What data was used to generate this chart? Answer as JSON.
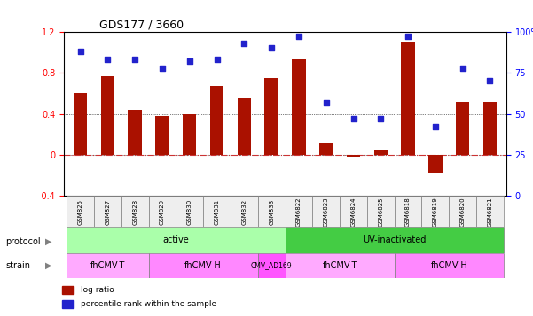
{
  "title": "GDS177 / 3660",
  "samples": [
    "GSM825",
    "GSM827",
    "GSM828",
    "GSM829",
    "GSM830",
    "GSM831",
    "GSM832",
    "GSM833",
    "GSM6822",
    "GSM6823",
    "GSM6824",
    "GSM6825",
    "GSM6818",
    "GSM6819",
    "GSM6820",
    "GSM6821"
  ],
  "log_ratio": [
    0.6,
    0.77,
    0.44,
    0.38,
    0.4,
    0.67,
    0.55,
    0.75,
    0.93,
    0.12,
    -0.02,
    0.04,
    1.1,
    -0.18,
    0.52,
    0.52
  ],
  "percentile": [
    88,
    83,
    83,
    78,
    82,
    83,
    93,
    90,
    97,
    57,
    47,
    47,
    97,
    42,
    78,
    70
  ],
  "ylim_left": [
    -0.4,
    1.2
  ],
  "ylim_right": [
    0,
    100
  ],
  "yticks_left": [
    -0.4,
    0,
    0.4,
    0.8,
    1.2
  ],
  "yticks_right": [
    0,
    25,
    50,
    75,
    100
  ],
  "hlines": [
    0.0,
    0.4,
    0.8
  ],
  "bar_color": "#AA1100",
  "dot_color": "#2222CC",
  "zero_line_color": "#CC3333",
  "protocol_groups": [
    {
      "label": "active",
      "start": 0,
      "end": 8,
      "color": "#AAFFAA"
    },
    {
      "label": "UV-inactivated",
      "start": 8,
      "end": 16,
      "color": "#44CC44"
    }
  ],
  "strain_groups": [
    {
      "label": "fhCMV-T",
      "start": 0,
      "end": 3,
      "color": "#FFAAFF"
    },
    {
      "label": "fhCMV-H",
      "start": 3,
      "end": 7,
      "color": "#FF88FF"
    },
    {
      "label": "CMV_AD169",
      "start": 7,
      "end": 8,
      "color": "#FF55FF"
    },
    {
      "label": "fhCMV-T",
      "start": 8,
      "end": 12,
      "color": "#FFAAFF"
    },
    {
      "label": "fhCMV-H",
      "start": 12,
      "end": 16,
      "color": "#FF88FF"
    }
  ],
  "legend_items": [
    {
      "label": "log ratio",
      "color": "#AA1100"
    },
    {
      "label": "percentile rank within the sample",
      "color": "#2222CC"
    }
  ]
}
